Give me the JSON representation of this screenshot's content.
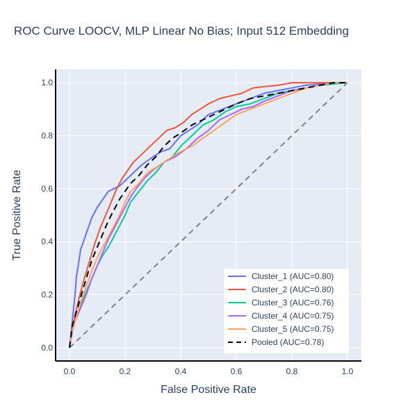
{
  "chart_data": {
    "type": "line",
    "title": "ROC Curve LOOCV, MLP Linear No Bias; Input 512 Embedding",
    "xlabel": "False Positive Rate",
    "ylabel": "True Positive Rate",
    "xlim": [
      -0.05,
      1.05
    ],
    "ylim": [
      -0.05,
      1.05
    ],
    "xticks": [
      0,
      0.2,
      0.4,
      0.6,
      0.8,
      1
    ],
    "xtick_labels": [
      "0.0",
      "0.2",
      "0.4",
      "0.6",
      "0.8",
      "1.0"
    ],
    "yticks": [
      0,
      0.2,
      0.4,
      0.6,
      0.8,
      1
    ],
    "ytick_labels": [
      "0.0",
      "0.2",
      "0.4",
      "0.6",
      "0.8",
      "1.0"
    ],
    "grid": true,
    "legend_position": "bottom-right",
    "colors": {
      "plot_bg": "#e5ecf6",
      "grid": "#ffffff",
      "text": "#2a3f5f",
      "diagonal": "#808080"
    },
    "series": [
      {
        "name": "Cluster_1 (AUC=0.80)",
        "color": "#636efa",
        "dash": "solid",
        "x": [
          0,
          0.01,
          0.015,
          0.02,
          0.025,
          0.03,
          0.04,
          0.05,
          0.06,
          0.08,
          0.1,
          0.12,
          0.14,
          0.16,
          0.18,
          0.2,
          0.23,
          0.26,
          0.3,
          0.33,
          0.36,
          0.4,
          0.43,
          0.46,
          0.5,
          0.55,
          0.6,
          0.65,
          0.7,
          0.75,
          0.8,
          0.85,
          0.9,
          0.95,
          1.0
        ],
        "y": [
          0,
          0.1,
          0.15,
          0.2,
          0.27,
          0.3,
          0.37,
          0.4,
          0.43,
          0.49,
          0.53,
          0.56,
          0.59,
          0.6,
          0.61,
          0.63,
          0.66,
          0.69,
          0.72,
          0.74,
          0.75,
          0.8,
          0.82,
          0.84,
          0.88,
          0.9,
          0.92,
          0.94,
          0.96,
          0.97,
          0.98,
          0.99,
          0.995,
          1.0,
          1.0
        ]
      },
      {
        "name": "Cluster_2 (AUC=0.80)",
        "color": "#ef553b",
        "dash": "solid",
        "x": [
          0,
          0.01,
          0.02,
          0.03,
          0.05,
          0.07,
          0.09,
          0.11,
          0.13,
          0.15,
          0.17,
          0.19,
          0.21,
          0.23,
          0.26,
          0.29,
          0.32,
          0.35,
          0.38,
          0.41,
          0.44,
          0.47,
          0.5,
          0.54,
          0.58,
          0.62,
          0.66,
          0.7,
          0.75,
          0.8,
          0.85,
          0.9,
          0.95,
          1.0
        ],
        "y": [
          0,
          0.07,
          0.12,
          0.17,
          0.25,
          0.32,
          0.39,
          0.45,
          0.5,
          0.55,
          0.6,
          0.64,
          0.67,
          0.7,
          0.73,
          0.76,
          0.79,
          0.82,
          0.83,
          0.85,
          0.88,
          0.9,
          0.92,
          0.94,
          0.95,
          0.96,
          0.98,
          0.985,
          0.99,
          1.0,
          1.0,
          1.0,
          1.0,
          1.0
        ]
      },
      {
        "name": "Cluster_3 (AUC=0.76)",
        "color": "#00cc96",
        "dash": "solid",
        "x": [
          0,
          0.01,
          0.02,
          0.04,
          0.06,
          0.08,
          0.1,
          0.12,
          0.14,
          0.16,
          0.18,
          0.2,
          0.22,
          0.25,
          0.28,
          0.31,
          0.34,
          0.37,
          0.4,
          0.44,
          0.48,
          0.52,
          0.56,
          0.6,
          0.65,
          0.7,
          0.75,
          0.8,
          0.85,
          0.9,
          0.95,
          1.0
        ],
        "y": [
          0,
          0.06,
          0.1,
          0.16,
          0.21,
          0.26,
          0.31,
          0.35,
          0.38,
          0.42,
          0.46,
          0.5,
          0.55,
          0.59,
          0.63,
          0.66,
          0.7,
          0.72,
          0.76,
          0.8,
          0.84,
          0.86,
          0.89,
          0.91,
          0.92,
          0.94,
          0.96,
          0.97,
          0.98,
          0.99,
          0.995,
          1.0
        ]
      },
      {
        "name": "Cluster_4 (AUC=0.75)",
        "color": "#ab63fa",
        "dash": "solid",
        "x": [
          0,
          0.01,
          0.02,
          0.04,
          0.06,
          0.08,
          0.1,
          0.12,
          0.14,
          0.16,
          0.18,
          0.2,
          0.22,
          0.24,
          0.27,
          0.3,
          0.34,
          0.38,
          0.42,
          0.46,
          0.5,
          0.54,
          0.58,
          0.62,
          0.66,
          0.7,
          0.75,
          0.8,
          0.85,
          0.9,
          0.95,
          1.0
        ],
        "y": [
          0,
          0.06,
          0.1,
          0.15,
          0.2,
          0.26,
          0.31,
          0.36,
          0.41,
          0.45,
          0.49,
          0.53,
          0.57,
          0.6,
          0.64,
          0.67,
          0.7,
          0.72,
          0.75,
          0.79,
          0.82,
          0.86,
          0.88,
          0.9,
          0.91,
          0.93,
          0.95,
          0.97,
          0.98,
          0.99,
          1.0,
          1.0
        ]
      },
      {
        "name": "Cluster_5 (AUC=0.75)",
        "color": "#ffa15a",
        "dash": "solid",
        "x": [
          0,
          0.01,
          0.02,
          0.04,
          0.06,
          0.08,
          0.1,
          0.12,
          0.14,
          0.16,
          0.18,
          0.2,
          0.22,
          0.25,
          0.28,
          0.31,
          0.34,
          0.37,
          0.4,
          0.44,
          0.48,
          0.52,
          0.56,
          0.6,
          0.65,
          0.7,
          0.75,
          0.8,
          0.85,
          0.9,
          0.95,
          1.0
        ],
        "y": [
          0,
          0.06,
          0.1,
          0.17,
          0.23,
          0.29,
          0.34,
          0.38,
          0.42,
          0.46,
          0.5,
          0.55,
          0.59,
          0.62,
          0.66,
          0.68,
          0.7,
          0.72,
          0.74,
          0.76,
          0.79,
          0.82,
          0.85,
          0.88,
          0.9,
          0.92,
          0.94,
          0.96,
          0.98,
          0.99,
          1.0,
          1.0
        ]
      },
      {
        "name": "Pooled (AUC=0.78)",
        "color": "#000000",
        "dash": "dash",
        "x": [
          0,
          0.01,
          0.02,
          0.04,
          0.06,
          0.08,
          0.1,
          0.12,
          0.14,
          0.16,
          0.18,
          0.2,
          0.22,
          0.25,
          0.28,
          0.31,
          0.34,
          0.37,
          0.4,
          0.44,
          0.48,
          0.52,
          0.56,
          0.6,
          0.65,
          0.7,
          0.75,
          0.8,
          0.85,
          0.9,
          0.95,
          1.0
        ],
        "y": [
          0,
          0.08,
          0.12,
          0.19,
          0.26,
          0.33,
          0.38,
          0.43,
          0.48,
          0.52,
          0.56,
          0.59,
          0.62,
          0.65,
          0.69,
          0.72,
          0.76,
          0.79,
          0.81,
          0.84,
          0.86,
          0.88,
          0.9,
          0.92,
          0.94,
          0.95,
          0.96,
          0.97,
          0.98,
          0.99,
          1.0,
          1.0
        ]
      }
    ],
    "reference_line": {
      "x": [
        0,
        1
      ],
      "y": [
        0,
        1
      ]
    }
  }
}
